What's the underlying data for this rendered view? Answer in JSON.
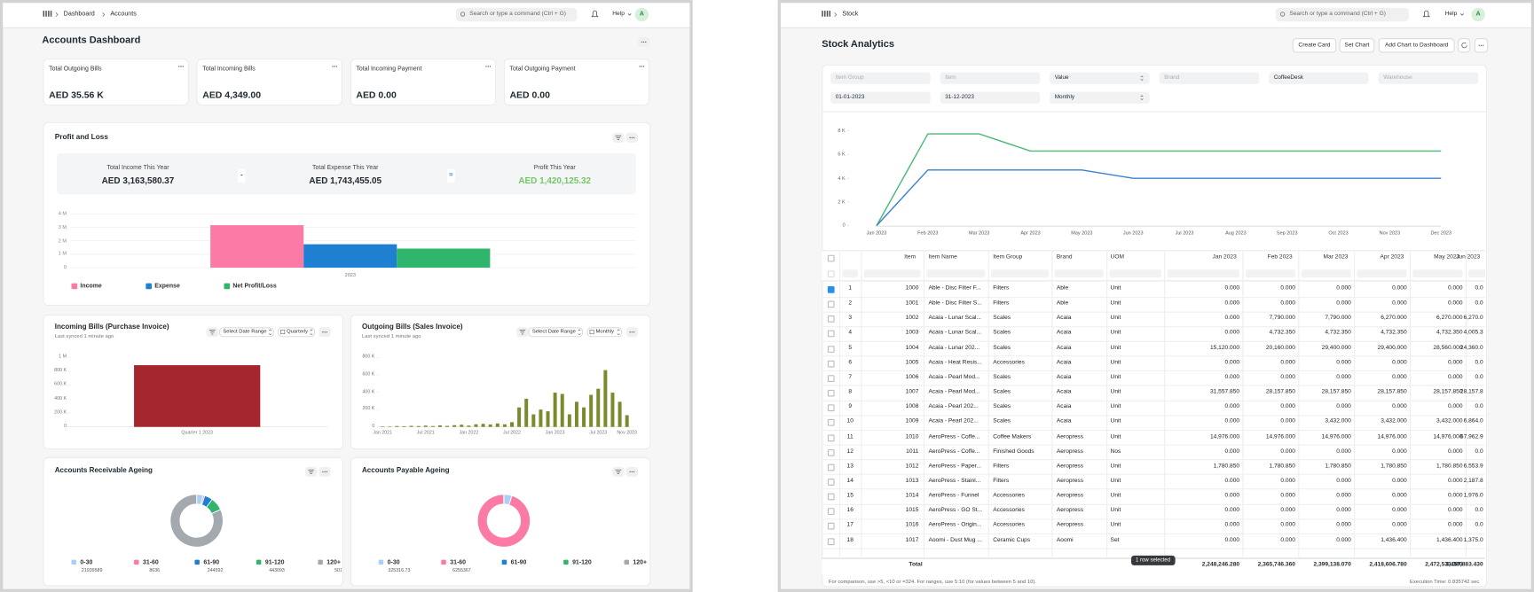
{
  "accounts": {
    "navbar": {
      "breadcrumb": [
        "Dashboard",
        "Accounts"
      ],
      "search": "Search or type a command (Ctrl + G)",
      "help": "Help",
      "avatar": "A"
    },
    "title": "Accounts Dashboard",
    "cards": [
      {
        "label": "Total Outgoing Bills",
        "value": "AED 35.56 K"
      },
      {
        "label": "Total Incoming Bills",
        "value": "AED 4,349.00"
      },
      {
        "label": "Total Incoming Payment",
        "value": "AED 0.00"
      },
      {
        "label": "Total Outgoing Payment",
        "value": "AED 0.00"
      }
    ],
    "profit_and_loss": {
      "title": "Profit and Loss",
      "summary": [
        {
          "label": "Total Income This Year",
          "value": "AED 3,163,580.37"
        },
        {
          "label": "Total Expense This Year",
          "value": "AED 1,743,455.05"
        },
        {
          "label": "Profit This Year",
          "value": "AED 1,420,125.32"
        }
      ],
      "operators": [
        "-",
        "="
      ],
      "chart": {
        "type": "bar",
        "categories": [
          "2023"
        ],
        "series": [
          {
            "name": "Income",
            "color": "#fc7ba6",
            "values": [
              3163580.37
            ]
          },
          {
            "name": "Expense",
            "color": "#1f7fd1",
            "values": [
              1743455.05
            ]
          },
          {
            "name": "Net Profit/Loss",
            "color": "#30b56c",
            "values": [
              1420125.32
            ]
          }
        ],
        "ylim": [
          0,
          4000000
        ],
        "yticks": [
          0,
          {
            "value": 1000000,
            "label": "1 M"
          },
          {
            "value": 2000000,
            "label": "2 M"
          },
          {
            "value": 3000000,
            "label": "3 M"
          },
          {
            "value": 4000000,
            "label": "4 M"
          }
        ],
        "grid": true
      }
    },
    "incoming_bills": {
      "title": "Incoming Bills (Purchase Invoice)",
      "subtitle": "Last synced 1 minute ago",
      "controls": [
        "Select Date Range",
        "Quarterly"
      ],
      "chart": {
        "type": "bar",
        "categories": [
          "Quarter 1 2023"
        ],
        "values": [
          890000
        ],
        "color": "#a6262e",
        "ylim": [
          0,
          1000000
        ],
        "yticks": [
          0,
          {
            "value": 200000,
            "label": "200 K"
          },
          {
            "value": 400000,
            "label": "400 K"
          },
          {
            "value": 600000,
            "label": "600 K"
          },
          {
            "value": 800000,
            "label": "800 K"
          },
          {
            "value": 1000000,
            "label": "1 M"
          }
        ]
      }
    },
    "outgoing_bills": {
      "title": "Outgoing Bills (Sales Invoice)",
      "subtitle": "Last synced 1 minute ago",
      "controls": [
        "Select Date Range",
        "Monthly"
      ],
      "chart": {
        "type": "bar",
        "categories": [
          "Jan 2021",
          null,
          null,
          null,
          null,
          null,
          "Jul 2021",
          null,
          null,
          null,
          null,
          null,
          "Jan 2022",
          null,
          null,
          null,
          null,
          null,
          "Jul 2022",
          null,
          null,
          null,
          null,
          null,
          "Jan 2023",
          null,
          null,
          null,
          null,
          null,
          "Jul 2023",
          null,
          null,
          null,
          "Nov 2023"
        ],
        "values": [
          5000,
          5000,
          10000,
          8000,
          12000,
          10000,
          15000,
          10000,
          18000,
          12000,
          20000,
          25000,
          15000,
          30000,
          35000,
          28000,
          40000,
          30000,
          55000,
          225000,
          325000,
          145000,
          200000,
          180000,
          395000,
          380000,
          145000,
          290000,
          225000,
          370000,
          440000,
          655000,
          395000,
          290000,
          135000
        ],
        "color": "#7a8a2c",
        "ylim": [
          0,
          800000
        ],
        "yticks": [
          0,
          {
            "value": 200000,
            "label": "200 K"
          },
          {
            "value": 400000,
            "label": "400 K"
          },
          {
            "value": 600000,
            "label": "600 K"
          },
          {
            "value": 800000,
            "label": "800 K"
          }
        ]
      }
    },
    "receivable_ageing": {
      "title": "Accounts Receivable Ageing",
      "chart": {
        "type": "donut",
        "categories": [
          "0-30",
          "31-60",
          "61-90",
          "91-120",
          "120+"
        ],
        "amounts": [
          "21939589",
          "8636",
          "244592",
          "443093",
          "501"
        ],
        "values": [
          4,
          1,
          5,
          8,
          82
        ],
        "colors": [
          "#a9d1f5",
          "#fc7ba6",
          "#1f7fd1",
          "#30b56c",
          "#a3a9af"
        ]
      }
    },
    "payable_ageing": {
      "title": "Accounts Payable Ageing",
      "chart": {
        "type": "donut",
        "categories": [
          "0-30",
          "31-60",
          "61-90",
          "91-120",
          "120+"
        ],
        "amounts": [
          "325316.73",
          "6255367",
          null,
          null,
          null
        ],
        "values": [
          5,
          95,
          0,
          0,
          0
        ],
        "colors": [
          "#a9d1f5",
          "#fc7ba6",
          "#1f7fd1",
          "#30b56c",
          "#a3a9af"
        ]
      }
    }
  },
  "stock": {
    "navbar": {
      "breadcrumb": [
        "Stock"
      ],
      "search": "Search or type a command (Ctrl + G)",
      "help": "Help",
      "avatar": "A"
    },
    "title": "Stock Analytics",
    "actions": [
      "Create Card",
      "Set Chart",
      "Add Chart to Dashboard"
    ],
    "filters": [
      {
        "text": "Item Group",
        "placeholder": true
      },
      {
        "text": "Item",
        "placeholder": true
      },
      {
        "text": "Value",
        "select": true
      },
      {
        "text": "Brand",
        "placeholder": true
      },
      {
        "text": "CoffeeDesk"
      },
      {
        "text": "Warehouse",
        "placeholder": true
      },
      {
        "text": "01-01-2023"
      },
      {
        "text": "31-12-2023"
      },
      {
        "text": "Monthly",
        "select": true
      }
    ],
    "chart": {
      "type": "line",
      "categories": [
        "Jan 2023",
        "Feb 2023",
        "Mar 2023",
        "Apr 2023",
        "May 2023",
        "Jun 2023",
        "Jul 2023",
        "Aug 2023",
        "Sep 2023",
        "Oct 2023",
        "Nov 2023",
        "Dec 2023"
      ],
      "series": [
        {
          "color": "#4cb87a",
          "values": [
            0,
            7750,
            7750,
            6300,
            6300,
            6300,
            6300,
            6300,
            6300,
            6300,
            6300,
            6300
          ]
        },
        {
          "color": "#3a80cf",
          "values": [
            0,
            4700,
            4700,
            4700,
            4700,
            4000,
            4000,
            4000,
            4000,
            4000,
            4000,
            4000
          ]
        }
      ],
      "ylim": [
        0,
        8000
      ],
      "yticks": [
        0,
        {
          "value": 2000,
          "label": "2 K"
        },
        {
          "value": 4000,
          "label": "4 K"
        },
        {
          "value": 6000,
          "label": "6 K"
        },
        {
          "value": 8000,
          "label": "8 K"
        }
      ]
    },
    "table": {
      "columns": [
        "Item",
        "Item Name",
        "Item Group",
        "Brand",
        "UOM",
        "Jan 2023",
        "Feb 2023",
        "Mar 2023",
        "Apr 2023",
        "May 2023",
        "Jun 2023"
      ],
      "selected": [
        0
      ],
      "rows": [
        [
          "1",
          "1000",
          "Able - Disc Filter F...",
          "Filters",
          "Able",
          "Unit",
          "0.000",
          "0.000",
          "0.000",
          "0.000",
          "0.000",
          "0.0"
        ],
        [
          "2",
          "1001",
          "Able - Disc Filter S...",
          "Filters",
          "Able",
          "Unit",
          "0.000",
          "0.000",
          "0.000",
          "0.000",
          "0.000",
          "0.0"
        ],
        [
          "3",
          "1002",
          "Acaia - Lunar Scal...",
          "Scales",
          "Acaia",
          "Unit",
          "0.000",
          "7,790.000",
          "7,790.000",
          "6,270.000",
          "6,270.000",
          "6,270.0"
        ],
        [
          "4",
          "1003",
          "Acaia - Lunar Scal...",
          "Scales",
          "Acaia",
          "Unit",
          "0.000",
          "4,732.350",
          "4,732.350",
          "4,732.350",
          "4,732.350",
          "4,005.3"
        ],
        [
          "5",
          "1004",
          "Acaia - Lunar 202...",
          "Scales",
          "Acaia",
          "Unit",
          "15,120.000",
          "20,160.000",
          "29,400.000",
          "29,400.000",
          "28,560.000",
          "24,360.0"
        ],
        [
          "6",
          "1005",
          "Acaia - Heat Resis...",
          "Accessories",
          "Acaia",
          "Unit",
          "0.000",
          "0.000",
          "0.000",
          "0.000",
          "0.000",
          "0.0"
        ],
        [
          "7",
          "1006",
          "Acaia - Pearl Mod...",
          "Scales",
          "Acaia",
          "Unit",
          "0.000",
          "0.000",
          "0.000",
          "0.000",
          "0.000",
          "0.0"
        ],
        [
          "8",
          "1007",
          "Acaia - Pearl Mod...",
          "Scales",
          "Acaia",
          "Unit",
          "31,557.850",
          "28,157.850",
          "28,157.850",
          "28,157.850",
          "28,157.850",
          "28,157.8"
        ],
        [
          "9",
          "1008",
          "Acaia - Pearl 202...",
          "Scales",
          "Acaia",
          "Unit",
          "0.000",
          "0.000",
          "0.000",
          "0.000",
          "0.000",
          "0.0"
        ],
        [
          "10",
          "1009",
          "Acaia - Pearl 202...",
          "Scales",
          "Acaia",
          "Unit",
          "0.000",
          "0.000",
          "3,432.000",
          "3,432.000",
          "3,432.000",
          "6,864.0"
        ],
        [
          "11",
          "1010",
          "AeroPress - Coffe...",
          "Coffee Makers",
          "Aeropress",
          "Unit",
          "14,976.000",
          "14,976.000",
          "14,976.000",
          "14,976.000",
          "14,976.000",
          "67,962.9"
        ],
        [
          "12",
          "1011",
          "AeroPress - Coffe...",
          "Finished Goods",
          "Aeropress",
          "Nos",
          "0.000",
          "0.000",
          "0.000",
          "0.000",
          "0.000",
          "0.0"
        ],
        [
          "13",
          "1012",
          "AeroPress - Paper...",
          "Filters",
          "Aeropress",
          "Unit",
          "1,780.850",
          "1,780.850",
          "1,780.850",
          "1,780.850",
          "1,780.850",
          "6,553.9"
        ],
        [
          "14",
          "1013",
          "AeroPress - Stainl...",
          "Filters",
          "Aeropress",
          "Unit",
          "0.000",
          "0.000",
          "0.000",
          "0.000",
          "0.000",
          "2,187.8"
        ],
        [
          "15",
          "1014",
          "AeroPress - Funnel",
          "Accessories",
          "Aeropress",
          "Unit",
          "0.000",
          "0.000",
          "0.000",
          "0.000",
          "0.000",
          "1,976.0"
        ],
        [
          "16",
          "1015",
          "AeroPress - GO St...",
          "Accessories",
          "Aeropress",
          "Unit",
          "0.000",
          "0.000",
          "0.000",
          "0.000",
          "0.000",
          "0.0"
        ],
        [
          "17",
          "1016",
          "AeroPress - Origin...",
          "Accessories",
          "Aeropress",
          "Unit",
          "0.000",
          "0.000",
          "0.000",
          "0.000",
          "0.000",
          "0.0"
        ],
        [
          "18",
          "1017",
          "Aoomi - Dust Mug ...",
          "Ceramic Cups",
          "Aoomi",
          "Set",
          "0.000",
          "0.000",
          "0.000",
          "1,436.400",
          "1,436.400",
          "1,375.0"
        ]
      ],
      "total": {
        "label": "Total",
        "values": [
          "2,248,246.280",
          "2,365,746.360",
          "2,399,138.070",
          "2,418,606.780",
          "2,472,533.380",
          "3,457,883.430"
        ]
      }
    },
    "tooltip": "1 row selected",
    "footer": "For comparison, use >5, <10 or =324. For ranges, use 5:10 (for values between 5 and 10).",
    "execution_time": "Execution Time: 0.835742 sec"
  }
}
